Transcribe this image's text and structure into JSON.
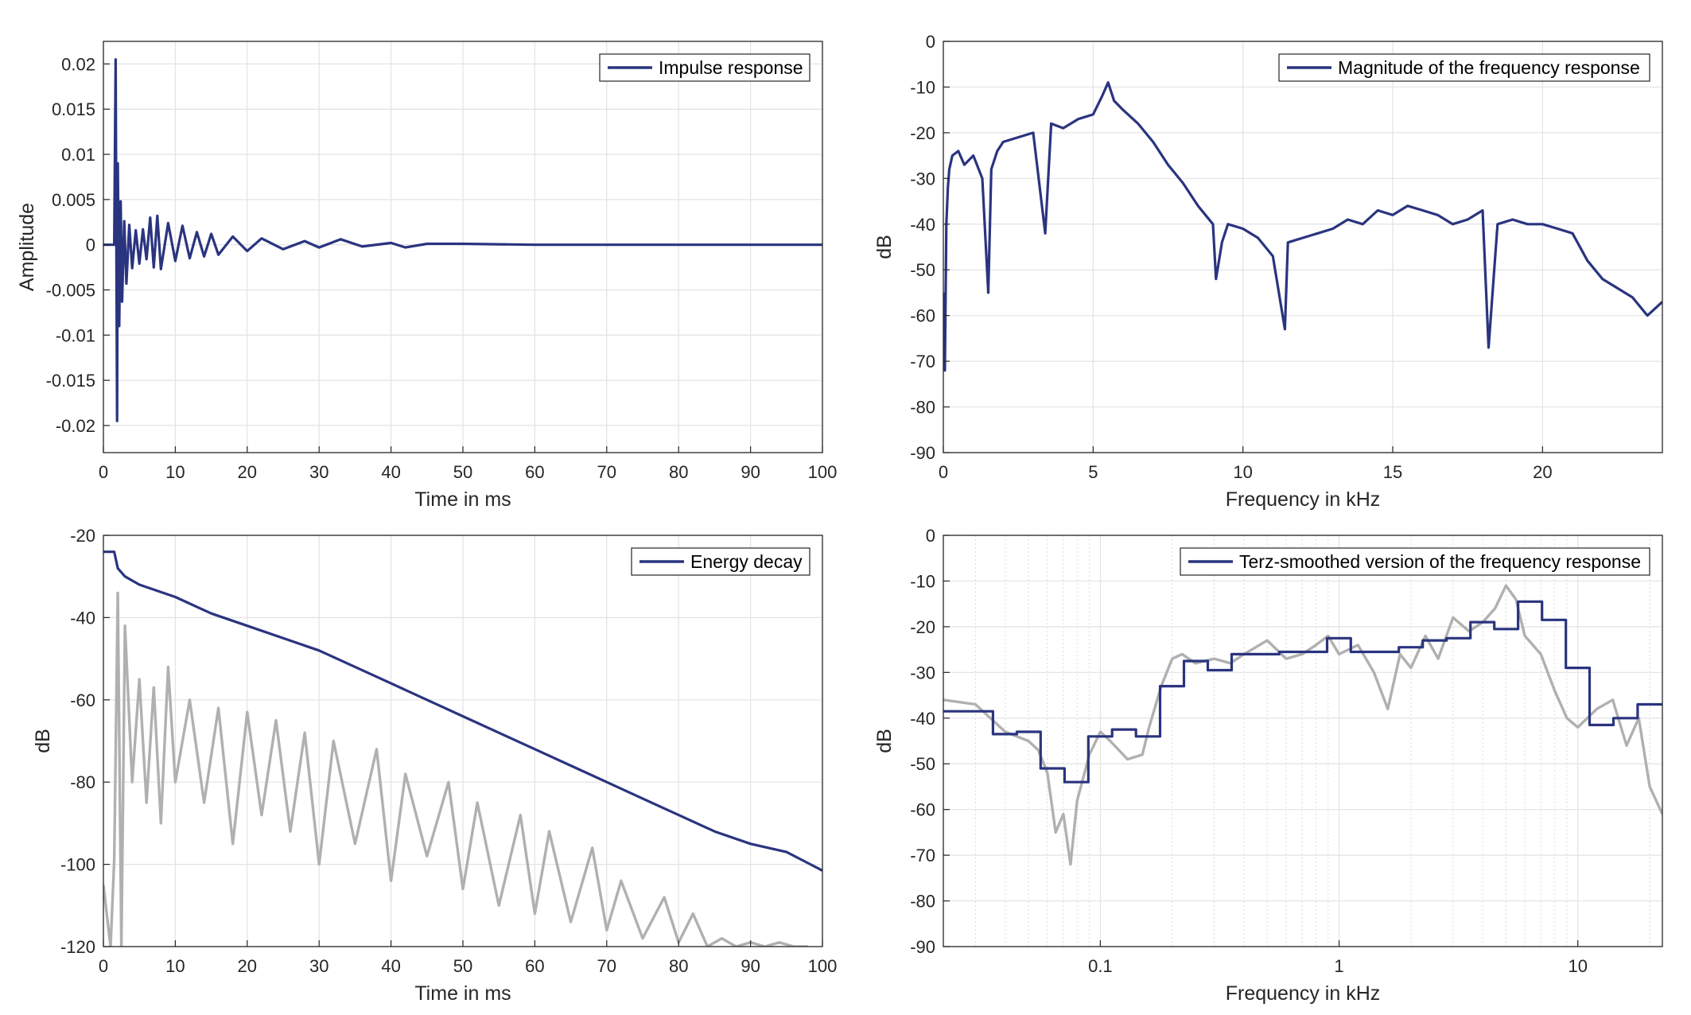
{
  "colors": {
    "series": "#2a347f",
    "raw": "#b0b0b0",
    "grid": "#e3e3e3",
    "axes": "#262626"
  },
  "chart_data": [
    {
      "type": "line",
      "xlabel": "Time in ms",
      "ylabel": "Amplitude",
      "xlim": [
        0,
        100
      ],
      "ylim": [
        -0.023,
        0.0225
      ],
      "x_ticks": [
        0,
        10,
        20,
        30,
        40,
        50,
        60,
        70,
        80,
        90,
        100
      ],
      "y_ticks": [
        -0.02,
        -0.015,
        -0.01,
        -0.005,
        0,
        0.005,
        0.01,
        0.015,
        0.02
      ],
      "x_tick_labels": [
        "0",
        "10",
        "20",
        "30",
        "40",
        "50",
        "60",
        "70",
        "80",
        "90",
        "100"
      ],
      "y_tick_labels": [
        "-0.02",
        "-0.015",
        "-0.01",
        "-0.005",
        "0",
        "0.005",
        "0.01",
        "0.015",
        "0.02"
      ],
      "grid": true,
      "legend_position": "top-right",
      "series": [
        {
          "name": "Impulse response",
          "color": "#2a347f",
          "x": [
            0,
            1.5,
            1.7,
            1.9,
            2.0,
            2.2,
            2.4,
            2.6,
            2.9,
            3.2,
            3.6,
            4.0,
            4.5,
            5.0,
            5.5,
            6.0,
            6.5,
            7.0,
            7.5,
            8.0,
            9.0,
            10.0,
            11.0,
            12.0,
            13.0,
            14.0,
            15.0,
            16.0,
            18.0,
            20.0,
            22.0,
            25.0,
            28.0,
            30.0,
            33.0,
            36.0,
            40.0,
            42.0,
            45.0,
            50.0,
            60.0,
            70.0,
            80.0,
            90.0,
            100.0
          ],
          "y": [
            0,
            0,
            0.0205,
            -0.0195,
            0.009,
            -0.009,
            0.0048,
            -0.0063,
            0.0026,
            -0.0043,
            0.0022,
            -0.0026,
            0.0016,
            -0.0021,
            0.0017,
            -0.0016,
            0.003,
            -0.0025,
            0.0032,
            -0.0027,
            0.0024,
            -0.0018,
            0.0021,
            -0.0015,
            0.0014,
            -0.0013,
            0.0012,
            -0.0011,
            0.0009,
            -0.0007,
            0.0007,
            -0.0005,
            0.0004,
            -0.0003,
            0.0006,
            -0.0002,
            0.0002,
            -0.0003,
            0.0001,
            0.0001,
            0,
            0,
            0,
            0,
            0
          ]
        }
      ]
    },
    {
      "type": "line",
      "xlabel": "Frequency in kHz",
      "ylabel": "dB",
      "xlim": [
        0,
        24
      ],
      "ylim": [
        -90,
        0
      ],
      "x_ticks": [
        0,
        5,
        10,
        15,
        20
      ],
      "y_ticks": [
        -90,
        -80,
        -70,
        -60,
        -50,
        -40,
        -30,
        -20,
        -10,
        0
      ],
      "x_tick_labels": [
        "0",
        "5",
        "10",
        "15",
        "20"
      ],
      "y_tick_labels": [
        "-90",
        "-80",
        "-70",
        "-60",
        "-50",
        "-40",
        "-30",
        "-20",
        "-10",
        "0"
      ],
      "grid": true,
      "legend_position": "top-right",
      "series": [
        {
          "name": "Magnitude of the frequency response",
          "color": "#2a347f",
          "x": [
            0.02,
            0.05,
            0.1,
            0.15,
            0.2,
            0.3,
            0.5,
            0.7,
            1.0,
            1.3,
            1.5,
            1.6,
            1.8,
            2.0,
            2.5,
            3.0,
            3.4,
            3.6,
            4.0,
            4.5,
            5.0,
            5.3,
            5.5,
            5.7,
            6.0,
            6.5,
            7.0,
            7.5,
            8.0,
            8.5,
            9.0,
            9.1,
            9.3,
            9.5,
            10.0,
            10.5,
            11.0,
            11.4,
            11.5,
            12.0,
            12.5,
            13.0,
            13.5,
            14.0,
            14.5,
            15.0,
            15.5,
            16.0,
            16.5,
            17.0,
            17.5,
            18.0,
            18.2,
            18.5,
            19.0,
            19.5,
            20.0,
            20.5,
            21.0,
            21.5,
            22.0,
            22.5,
            23.0,
            23.5,
            24.0
          ],
          "y": [
            -55,
            -72,
            -40,
            -32,
            -28,
            -25,
            -24,
            -27,
            -25,
            -30,
            -55,
            -28,
            -24,
            -22,
            -21,
            -20,
            -42,
            -18,
            -19,
            -17,
            -16,
            -12,
            -9,
            -13,
            -15,
            -18,
            -22,
            -27,
            -31,
            -36,
            -40,
            -52,
            -44,
            -40,
            -41,
            -43,
            -47,
            -63,
            -44,
            -43,
            -42,
            -41,
            -39,
            -40,
            -37,
            -38,
            -36,
            -37,
            -38,
            -40,
            -39,
            -37,
            -67,
            -40,
            -39,
            -40,
            -40,
            -41,
            -42,
            -48,
            -52,
            -54,
            -56,
            -60,
            -57
          ]
        }
      ]
    },
    {
      "type": "line",
      "xlabel": "Time in ms",
      "ylabel": "dB",
      "xlim": [
        0,
        100
      ],
      "ylim": [
        -120,
        -20
      ],
      "x_ticks": [
        0,
        10,
        20,
        30,
        40,
        50,
        60,
        70,
        80,
        90,
        100
      ],
      "y_ticks": [
        -120,
        -100,
        -80,
        -60,
        -40,
        -20
      ],
      "x_tick_labels": [
        "0",
        "10",
        "20",
        "30",
        "40",
        "50",
        "60",
        "70",
        "80",
        "90",
        "100"
      ],
      "y_tick_labels": [
        "-120",
        "-100",
        "-80",
        "-60",
        "-40",
        "-20"
      ],
      "grid": true,
      "legend_position": "top-right",
      "series": [
        {
          "name": "Energy decay",
          "color": "#2a347f",
          "x": [
            0,
            1.5,
            2,
            3,
            5,
            10,
            15,
            20,
            25,
            30,
            35,
            40,
            45,
            50,
            55,
            60,
            65,
            70,
            75,
            80,
            85,
            90,
            95,
            100
          ],
          "y": [
            -24,
            -24,
            -28,
            -30,
            -32,
            -35,
            -39,
            -42,
            -45,
            -48,
            -52,
            -56,
            -60,
            -64,
            -68,
            -72,
            -76,
            -80,
            -84,
            -88,
            -92,
            -95,
            -97,
            -101.5
          ]
        },
        {
          "color": "#b0b0b0",
          "x": [
            0,
            1,
            1.5,
            2,
            2.5,
            3,
            4,
            5,
            6,
            7,
            8,
            9,
            10,
            12,
            14,
            16,
            18,
            20,
            22,
            24,
            26,
            28,
            30,
            32,
            35,
            38,
            40,
            42,
            45,
            48,
            50,
            52,
            55,
            58,
            60,
            62,
            65,
            68,
            70,
            72,
            75,
            78,
            80,
            82,
            84,
            86,
            88,
            90,
            92,
            94,
            96,
            98
          ],
          "y": [
            -105,
            -120,
            -99,
            -34,
            -120,
            -42,
            -80,
            -55,
            -85,
            -57,
            -90,
            -52,
            -80,
            -60,
            -85,
            -62,
            -95,
            -63,
            -88,
            -65,
            -92,
            -68,
            -100,
            -70,
            -95,
            -72,
            -104,
            -78,
            -98,
            -80,
            -106,
            -85,
            -110,
            -88,
            -112,
            -92,
            -114,
            -96,
            -116,
            -104,
            -118,
            -108,
            -119,
            -112,
            -120,
            -118,
            -120,
            -119,
            -120,
            -119,
            -120,
            -120
          ]
        }
      ]
    },
    {
      "type": "line",
      "xlabel": "Frequency in kHz",
      "ylabel": "dB",
      "x_scale": "log",
      "xlim": [
        0.022,
        22.6
      ],
      "ylim": [
        -90,
        0
      ],
      "x_ticks": [
        0.1,
        1,
        10
      ],
      "y_ticks": [
        -90,
        -80,
        -70,
        -60,
        -50,
        -40,
        -30,
        -20,
        -10,
        0
      ],
      "x_tick_labels": [
        "0.1",
        "1",
        "10"
      ],
      "y_tick_labels": [
        "-90",
        "-80",
        "-70",
        "-60",
        "-50",
        "-40",
        "-30",
        "-20",
        "-10",
        "0"
      ],
      "grid": true,
      "legend_position": "top-right",
      "series": [
        {
          "name": "Terz-smoothed version of the frequency response",
          "color": "#2a347f",
          "step": true,
          "x": [
            0.022,
            0.0355,
            0.0447,
            0.0562,
            0.0708,
            0.0891,
            0.112,
            0.141,
            0.178,
            0.224,
            0.282,
            0.355,
            0.447,
            0.562,
            0.708,
            0.891,
            1.12,
            1.41,
            1.78,
            2.24,
            2.82,
            3.55,
            4.47,
            5.62,
            7.08,
            8.91,
            11.2,
            14.1,
            17.8,
            22.6
          ],
          "y": [
            -38.5,
            -43.5,
            -43,
            -51,
            -54,
            -44,
            -42.5,
            -44,
            -33,
            -27.5,
            -29.5,
            -26,
            -26,
            -25.5,
            -25.5,
            -22.5,
            -25.5,
            -25.5,
            -24.5,
            -23,
            -22.5,
            -19,
            -20.5,
            -14.5,
            -18.5,
            -29,
            -41.5,
            -40,
            -37,
            -44.5
          ]
        },
        {
          "color": "#b0b0b0",
          "x": [
            0.022,
            0.03,
            0.04,
            0.05,
            0.055,
            0.06,
            0.065,
            0.07,
            0.075,
            0.08,
            0.09,
            0.1,
            0.11,
            0.13,
            0.15,
            0.16,
            0.18,
            0.2,
            0.22,
            0.25,
            0.3,
            0.35,
            0.4,
            0.5,
            0.6,
            0.7,
            0.8,
            0.9,
            1.0,
            1.2,
            1.4,
            1.6,
            1.8,
            2.0,
            2.3,
            2.6,
            3.0,
            3.5,
            4.0,
            4.5,
            5.0,
            5.5,
            6.0,
            7.0,
            8.0,
            9.0,
            10.0,
            12.0,
            14.0,
            16.0,
            18.0,
            20.0,
            22.6
          ],
          "y": [
            -36,
            -37,
            -43,
            -45,
            -47,
            -52,
            -65,
            -61,
            -72,
            -58,
            -48,
            -43,
            -45,
            -49,
            -48,
            -42,
            -33,
            -27,
            -26,
            -28,
            -27,
            -28,
            -26,
            -23,
            -27,
            -26,
            -24,
            -22,
            -26,
            -24,
            -30,
            -38,
            -26,
            -29,
            -22,
            -27,
            -18,
            -21,
            -19,
            -16,
            -11,
            -14,
            -22,
            -26,
            -34,
            -40,
            -42,
            -38,
            -36,
            -46,
            -40,
            -55,
            -61
          ]
        }
      ]
    }
  ]
}
